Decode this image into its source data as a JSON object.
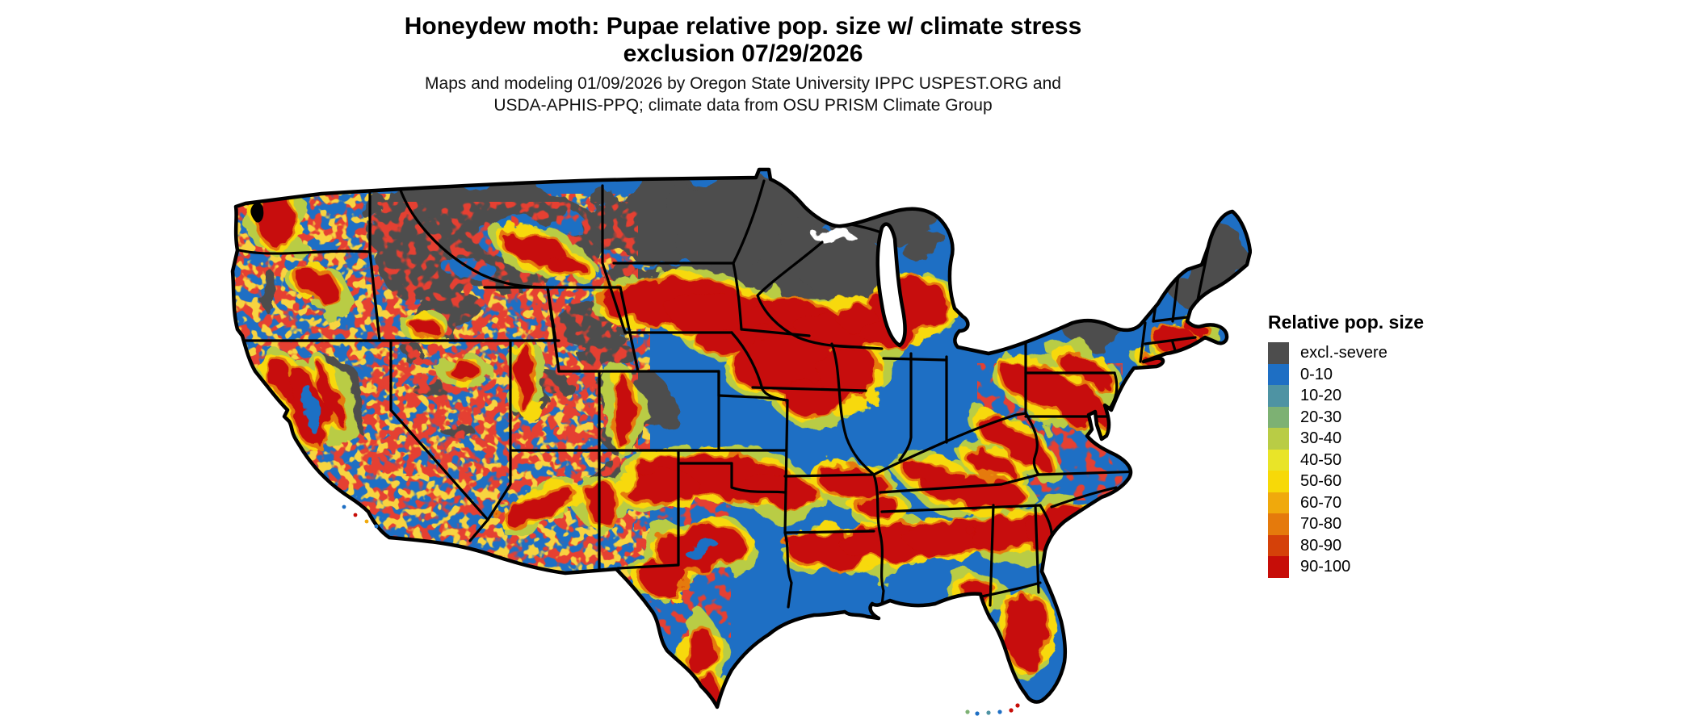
{
  "title": {
    "line1": "Honeydew moth: Pupae relative pop. size w/ climate stress",
    "line2": "exclusion 07/29/2026"
  },
  "subtitle": {
    "line1": "Maps and modeling 01/09/2026 by Oregon State University IPPC USPEST.ORG and",
    "line2": "USDA-APHIS-PPQ; climate data from OSU PRISM Climate Group"
  },
  "legend": {
    "title": "Relative pop. size",
    "items": [
      {
        "label": "excl.-severe",
        "color": "#4d4d4d"
      },
      {
        "label": "0-10",
        "color": "#1e6fc4"
      },
      {
        "label": "10-20",
        "color": "#4e93a3"
      },
      {
        "label": "20-30",
        "color": "#7db173"
      },
      {
        "label": "30-40",
        "color": "#b9cc45"
      },
      {
        "label": "40-50",
        "color": "#e9e428"
      },
      {
        "label": "50-60",
        "color": "#f7d908"
      },
      {
        "label": "60-70",
        "color": "#f0a90c"
      },
      {
        "label": "70-80",
        "color": "#e57a0c"
      },
      {
        "label": "80-90",
        "color": "#d54109"
      },
      {
        "label": "90-100",
        "color": "#c70d08"
      }
    ]
  },
  "map": {
    "region": "Continental United States",
    "kind": "raster risk map with state boundaries",
    "palette": {
      "gray": "#4d4d4d",
      "blue": "#1e6fc4",
      "teal": "#4e93a3",
      "green": "#7db173",
      "yellowgreen": "#b9cc45",
      "yellow": "#e9e428",
      "gold": "#f7d908",
      "orange": "#f0a90c",
      "dark_orange": "#e57a0c",
      "red": "#d54109",
      "dark_red": "#c70d08",
      "boundary": "#000000",
      "water": "#ffffff"
    }
  }
}
